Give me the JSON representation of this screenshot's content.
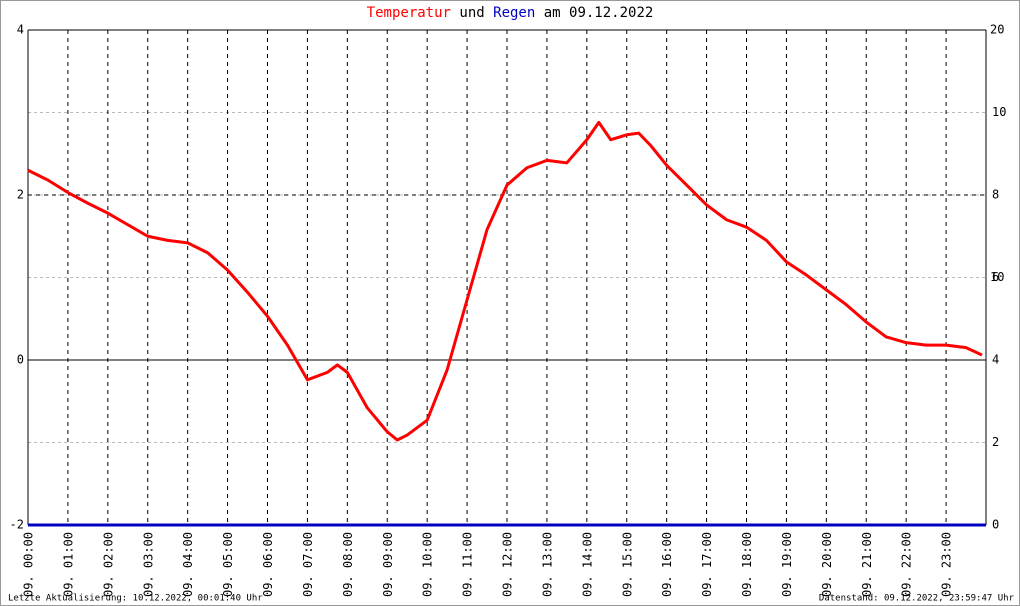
{
  "chart_data": {
    "type": "line",
    "title_connector": "und",
    "title_suffix": "am 09.12.2022",
    "xlim": [
      0,
      24
    ],
    "xticks": [
      {
        "value": 0,
        "label": "09. 00:00"
      },
      {
        "value": 1,
        "label": "09. 01:00"
      },
      {
        "value": 2,
        "label": "09. 02:00"
      },
      {
        "value": 3,
        "label": "09. 03:00"
      },
      {
        "value": 4,
        "label": "09. 04:00"
      },
      {
        "value": 5,
        "label": "09. 05:00"
      },
      {
        "value": 6,
        "label": "09. 06:00"
      },
      {
        "value": 7,
        "label": "09. 07:00"
      },
      {
        "value": 8,
        "label": "09. 08:00"
      },
      {
        "value": 9,
        "label": "09. 09:00"
      },
      {
        "value": 10,
        "label": "09. 10:00"
      },
      {
        "value": 11,
        "label": "09. 11:00"
      },
      {
        "value": 12,
        "label": "09. 12:00"
      },
      {
        "value": 13,
        "label": "09. 13:00"
      },
      {
        "value": 14,
        "label": "09. 14:00"
      },
      {
        "value": 15,
        "label": "09. 15:00"
      },
      {
        "value": 16,
        "label": "09. 16:00"
      },
      {
        "value": 17,
        "label": "09. 17:00"
      },
      {
        "value": 18,
        "label": "09. 18:00"
      },
      {
        "value": 19,
        "label": "09. 19:00"
      },
      {
        "value": 20,
        "label": "09. 20:00"
      },
      {
        "value": 21,
        "label": "09. 21:00"
      },
      {
        "value": 22,
        "label": "09. 22:00"
      },
      {
        "value": 23,
        "label": "09. 23:00"
      }
    ],
    "ylim": [
      -2,
      4
    ],
    "yticks": [
      -2,
      0,
      2,
      4
    ],
    "y2lim": [
      0,
      12
    ],
    "y2ticks": [
      0,
      2,
      4,
      6,
      8,
      10
    ],
    "y2color": "#00cc00",
    "y3lim": [
      0,
      20
    ],
    "y3ticks": [
      10,
      20
    ],
    "grid": true,
    "series": [
      {
        "name": "Temperatur",
        "color": "#ff0000",
        "x": [
          0,
          0.5,
          1,
          1.5,
          2,
          2.5,
          3,
          3.5,
          4,
          4.5,
          5,
          5.5,
          6,
          6.5,
          7,
          7.5,
          7.75,
          8,
          8.5,
          9,
          9.25,
          9.5,
          10,
          10.5,
          11,
          11.5,
          12,
          12.5,
          13,
          13.5,
          14,
          14.3,
          14.6,
          15,
          15.3,
          15.6,
          16,
          16.5,
          17,
          17.5,
          18,
          18.5,
          19,
          19.5,
          20,
          20.5,
          21,
          21.5,
          22,
          22.5,
          23,
          23.5,
          23.9
        ],
        "values": [
          2.3,
          2.18,
          2.03,
          1.9,
          1.78,
          1.64,
          1.5,
          1.45,
          1.42,
          1.3,
          1.09,
          0.82,
          0.53,
          0.18,
          -0.24,
          -0.15,
          -0.06,
          -0.15,
          -0.58,
          -0.87,
          -0.97,
          -0.91,
          -0.73,
          -0.12,
          0.73,
          1.58,
          2.12,
          2.33,
          2.42,
          2.39,
          2.67,
          2.88,
          2.67,
          2.73,
          2.75,
          2.6,
          2.36,
          2.12,
          1.88,
          1.7,
          1.61,
          1.45,
          1.19,
          1.03,
          0.85,
          0.67,
          0.46,
          0.28,
          0.21,
          0.18,
          0.18,
          0.15,
          0.06
        ]
      },
      {
        "name": "Regen",
        "color": "#0000c0",
        "axis": "y3",
        "x": [
          0,
          24
        ],
        "values": [
          0,
          0
        ]
      }
    ],
    "footer_left": "Letzte Aktualisierung: 10.12.2022, 00:01:40 Uhr",
    "footer_right": "Datenstand: 09.12.2022, 23:59:47 Uhr"
  }
}
